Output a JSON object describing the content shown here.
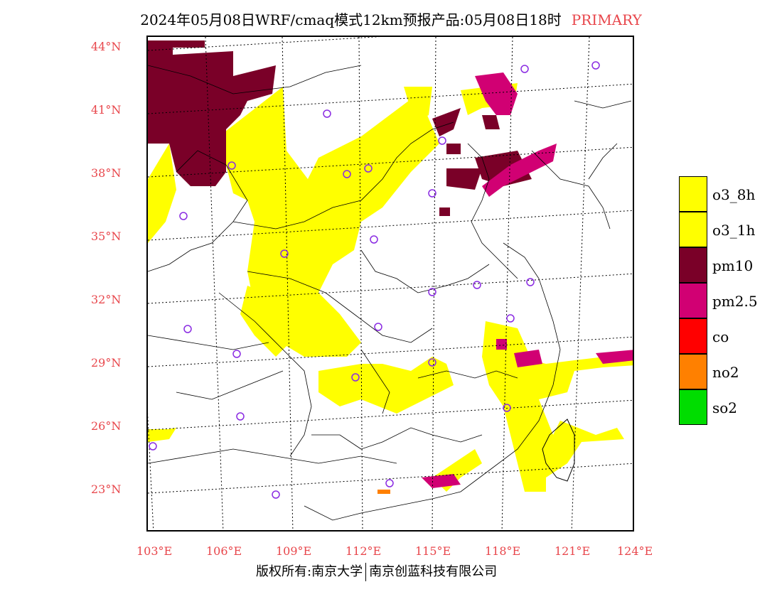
{
  "title": {
    "main": "2024年05月08日WRF/cmaq模式12km预报产品:05月08日18时",
    "tag": "PRIMARY"
  },
  "map": {
    "lat_labels": [
      "44°N",
      "41°N",
      "38°N",
      "35°N",
      "32°N",
      "29°N",
      "26°N",
      "23°N"
    ],
    "lon_labels": [
      "103°E",
      "106°E",
      "109°E",
      "112°E",
      "115°E",
      "118°E",
      "121°E",
      "124°E"
    ],
    "colors": {
      "o3": "#ffff00",
      "pm10": "#7a0028",
      "pm25": "#d10073",
      "no2": "#ff8000",
      "marker": "#8a2be2",
      "grid": "#000000",
      "border": "#000000"
    }
  },
  "legend": {
    "items": [
      {
        "label": "o3_8h",
        "color": "#ffff00"
      },
      {
        "label": "o3_1h",
        "color": "#ffff00"
      },
      {
        "label": "pm10",
        "color": "#7a0028"
      },
      {
        "label": "pm2.5",
        "color": "#d10073"
      },
      {
        "label": "co",
        "color": "#ff0000"
      },
      {
        "label": "no2",
        "color": "#ff8000"
      },
      {
        "label": "so2",
        "color": "#00dd00"
      }
    ]
  },
  "footer": {
    "left": "版权所有:南京大学",
    "right": "南京创蓝科技有限公司"
  }
}
